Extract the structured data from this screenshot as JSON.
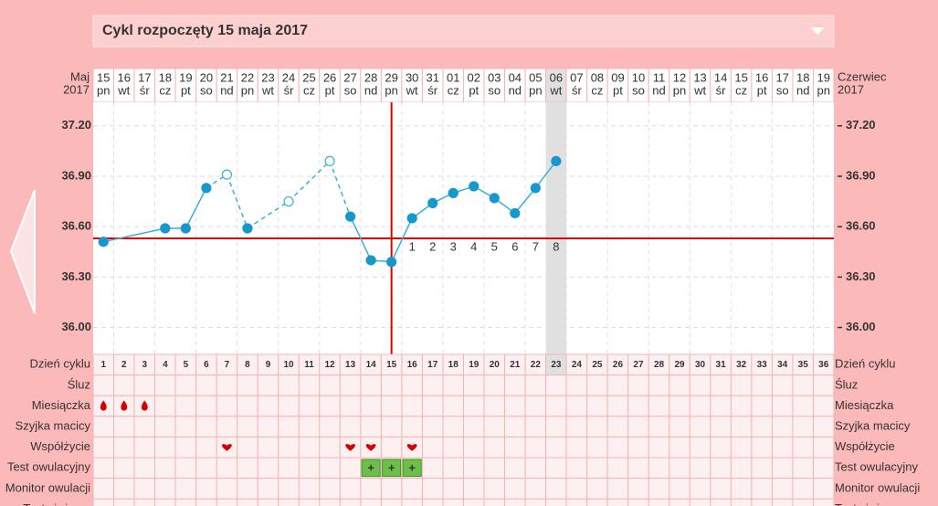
{
  "title": "Cykl rozpoczęty 15 maja 2017",
  "chart_data": {
    "type": "line",
    "month_start": "Maj",
    "year_start": "2017",
    "month_end": "Czerwiec",
    "year_end": "2017",
    "dates": [
      "15",
      "16",
      "17",
      "18",
      "19",
      "20",
      "21",
      "22",
      "23",
      "24",
      "25",
      "26",
      "27",
      "28",
      "29",
      "30",
      "31",
      "01",
      "02",
      "03",
      "04",
      "05",
      "06",
      "07",
      "08",
      "09",
      "10",
      "11",
      "12",
      "13",
      "14",
      "15",
      "16",
      "17",
      "18",
      "19"
    ],
    "weekdays": [
      "pn",
      "wt",
      "śr",
      "cz",
      "pt",
      "so",
      "nd",
      "pn",
      "wt",
      "śr",
      "cz",
      "pt",
      "so",
      "nd",
      "pn",
      "wt",
      "śr",
      "cz",
      "pt",
      "so",
      "nd",
      "pn",
      "wt",
      "śr",
      "cz",
      "pt",
      "so",
      "nd",
      "pn",
      "wt",
      "śr",
      "cz",
      "pt",
      "so",
      "nd",
      "pn"
    ],
    "sunday_columns": [
      6,
      13,
      20,
      27,
      34
    ],
    "today_column": 22,
    "series": [
      {
        "color": "#3aaede",
        "values": [
          36.51,
          null,
          null,
          36.59,
          36.59,
          36.83,
          36.91,
          36.59,
          null,
          36.75,
          null,
          36.99,
          36.66,
          36.4,
          36.39,
          36.65,
          36.74,
          36.8,
          36.84,
          36.77,
          36.68,
          36.83,
          36.99,
          null,
          null,
          null,
          null,
          null,
          null,
          null,
          null,
          null,
          null,
          null,
          null,
          null
        ],
        "open": [
          false,
          false,
          false,
          false,
          false,
          false,
          true,
          false,
          false,
          true,
          false,
          true,
          false,
          false,
          false,
          false,
          false,
          false,
          false,
          false,
          false,
          false,
          false,
          false,
          false,
          false,
          false,
          false,
          false,
          false,
          false,
          false,
          false,
          false,
          false,
          false
        ]
      }
    ],
    "ylim": [
      35.84,
      37.34
    ],
    "yticks": [
      {
        "value": 36,
        "label": "36.00"
      },
      {
        "value": 36.3,
        "label": "36.30"
      },
      {
        "value": 36.6,
        "label": "36.60"
      },
      {
        "value": 36.9,
        "label": "36.90"
      },
      {
        "value": 37.2,
        "label": "37.20"
      }
    ],
    "grid": true,
    "cover_line": 36.53,
    "cover_color": "#e00000",
    "ovulation_day": 15,
    "luteal_labels": [
      "1",
      "2",
      "3",
      "4",
      "5",
      "6",
      "7",
      "8"
    ]
  },
  "table": {
    "row_labels": [
      "Dzień cyklu",
      "Śluz",
      "Miesiączka",
      "Szyjka macicy",
      "Współżycie",
      "Test owulacyjny",
      "Monitor owulacji",
      "Test ciążowy"
    ],
    "cycle_days": [
      "1",
      "2",
      "3",
      "4",
      "5",
      "6",
      "7",
      "8",
      "9",
      "10",
      "11",
      "12",
      "13",
      "14",
      "15",
      "16",
      "17",
      "18",
      "19",
      "20",
      "21",
      "22",
      "23",
      "24",
      "25",
      "26",
      "27",
      "28",
      "29",
      "30",
      "31",
      "32",
      "33",
      "34",
      "35",
      "36"
    ],
    "menstruation_days": [
      1,
      2,
      3
    ],
    "intercourse_days": [
      7,
      13,
      14,
      16
    ],
    "ovulation_test_days": [
      14,
      15,
      16
    ],
    "test_positive_label": "+"
  }
}
